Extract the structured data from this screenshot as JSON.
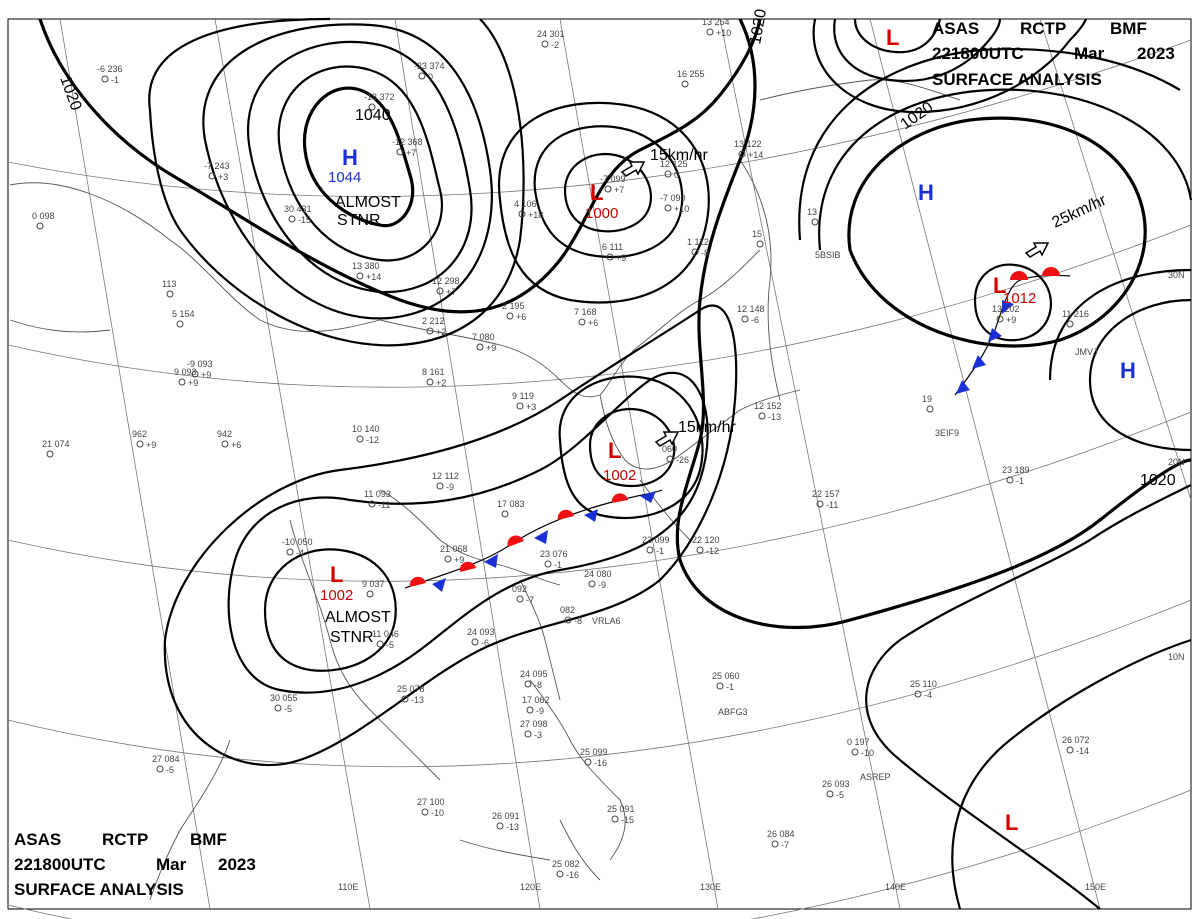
{
  "header_top": {
    "line1": [
      "ASAS",
      "RCTP",
      "BMF"
    ],
    "line2": [
      "221800UTC",
      "Mar",
      "2023"
    ],
    "line3": "SURFACE  ANALYSIS"
  },
  "header_bottom": {
    "line1": [
      "ASAS",
      "RCTP",
      "BMF"
    ],
    "line2": [
      "221800UTC",
      "Mar",
      "2023"
    ],
    "line3": "SURFACE  ANALYSIS"
  },
  "lon_labels": [
    "110E",
    "120E",
    "130E",
    "140E",
    "150E"
  ],
  "lat_labels": [
    "30N",
    "20N",
    "10N"
  ],
  "isobar_labels": [
    "1020",
    "1020",
    "1040",
    "1020",
    "1020"
  ],
  "pressure_centers": [
    {
      "type": "H",
      "value": "1044",
      "color": "#1a2fd6"
    },
    {
      "type": "L",
      "value": "1000",
      "color": "#d40000"
    },
    {
      "type": "L",
      "value": "1002",
      "color": "#d40000"
    },
    {
      "type": "L",
      "value": "1002",
      "color": "#d40000"
    },
    {
      "type": "H",
      "value": "",
      "color": "#1a2fd6"
    },
    {
      "type": "H",
      "value": "",
      "color": "#1a2fd6"
    },
    {
      "type": "L",
      "value": "1012",
      "color": "#d40000"
    },
    {
      "type": "L",
      "value": "",
      "color": "#d40000"
    },
    {
      "type": "L",
      "value": "",
      "color": "#d40000"
    }
  ],
  "notes": [
    "ALMOST",
    "STNR",
    "ALMOST",
    "STNR"
  ],
  "motions": [
    "15km/hr",
    "15km/hr",
    "25km/hr"
  ],
  "stations": [
    {
      "t": "-6  236",
      "v": "-1"
    },
    {
      "t": "-23 374",
      "v": "0"
    },
    {
      "t": "-18 372",
      "v": ""
    },
    {
      "t": "-12 368",
      "v": "+7"
    },
    {
      "t": "-7  243",
      "v": "+3"
    },
    {
      "t": "30 431",
      "v": "-15"
    },
    {
      "t": "13 380",
      "v": "+14"
    },
    {
      "t": "12 298",
      "v": "+7"
    },
    {
      "t": "2  212",
      "v": "+2"
    },
    {
      "t": "8  161",
      "v": "+2"
    },
    {
      "t": "9  093",
      "v": "+9"
    },
    {
      "t": "10 140",
      "v": "-12"
    },
    {
      "t": "12 112",
      "v": "-9"
    },
    {
      "t": "11 093",
      "v": "-11"
    },
    {
      "t": "-10 050",
      "v": "-4"
    },
    {
      "t": "17 083",
      "v": ""
    },
    {
      "t": "21 068",
      "v": "+9"
    },
    {
      "t": "23 076",
      "v": "-1"
    },
    {
      "t": "24 080",
      "v": "-9"
    },
    {
      "t": "092",
      "v": "-7"
    },
    {
      "t": "082",
      "v": "-8"
    },
    {
      "t": "23 099",
      "v": "-1"
    },
    {
      "t": "22 120",
      "v": "-12"
    },
    {
      "t": "24 093",
      "v": "-6"
    },
    {
      "t": "25 078",
      "v": "-13"
    },
    {
      "t": "30 055",
      "v": "-5"
    },
    {
      "t": "27 084",
      "v": "-5"
    },
    {
      "t": "24 095",
      "v": "-8"
    },
    {
      "t": "17 062",
      "v": "-9"
    },
    {
      "t": "27 098",
      "v": "-3"
    },
    {
      "t": "25 099",
      "v": "-16"
    },
    {
      "t": "27 100",
      "v": "-10"
    },
    {
      "t": "26 091",
      "v": "-13"
    },
    {
      "t": "25 091",
      "v": "-15"
    },
    {
      "t": "25 082",
      "v": "-16"
    },
    {
      "t": "26 084",
      "v": "-7"
    },
    {
      "t": "25 060",
      "v": "-1"
    },
    {
      "t": "25 110",
      "v": "-4"
    },
    {
      "t": "0  197",
      "v": "-10"
    },
    {
      "t": "26 093",
      "v": "-5"
    },
    {
      "t": "26 072",
      "v": "-14"
    },
    {
      "t": "23 189",
      "v": "-1"
    },
    {
      "t": "22 157",
      "v": "-11"
    },
    {
      "t": "12 152",
      "v": "-13"
    },
    {
      "t": "12 148",
      "v": "-6"
    },
    {
      "t": "13 122",
      "v": "+14"
    },
    {
      "t": "12 125",
      "v": "0"
    },
    {
      "t": "4  106",
      "v": "+18"
    },
    {
      "t": "-7  099",
      "v": "+7"
    },
    {
      "t": "-7  090",
      "v": "+10"
    },
    {
      "t": "1  112",
      "v": "-8"
    },
    {
      "t": "6  111",
      "v": "+9"
    },
    {
      "t": "7  168",
      "v": "+6"
    },
    {
      "t": "2  195",
      "v": "+6"
    },
    {
      "t": "7  080",
      "v": "+9"
    },
    {
      "t": "9  119",
      "v": "+3"
    },
    {
      "t": "942",
      "v": "+6"
    },
    {
      "t": "962",
      "v": "+9"
    },
    {
      "t": "21 074",
      "v": ""
    },
    {
      "t": "-9  093",
      "v": "+9"
    },
    {
      "t": "5  154",
      "v": ""
    },
    {
      "t": "113",
      "v": ""
    },
    {
      "t": "0  098",
      "v": ""
    },
    {
      "t": "24 301",
      "v": "-2"
    },
    {
      "t": "13 254",
      "v": "+10"
    },
    {
      "t": "16 255",
      "v": ""
    },
    {
      "t": "11 216",
      "v": ""
    },
    {
      "t": "13",
      "v": ""
    },
    {
      "t": "15",
      "v": ""
    },
    {
      "t": "19",
      "v": ""
    },
    {
      "t": "13 202",
      "v": "+9"
    },
    {
      "t": "060",
      "v": "-26"
    },
    {
      "t": "9  037",
      "v": ""
    },
    {
      "t": "11 046",
      "v": "-5"
    }
  ],
  "ship_ids": [
    "JMVJ",
    "3EIF9",
    "ASREP",
    "VRLA6",
    "ABFG3",
    "5BSIB"
  ]
}
